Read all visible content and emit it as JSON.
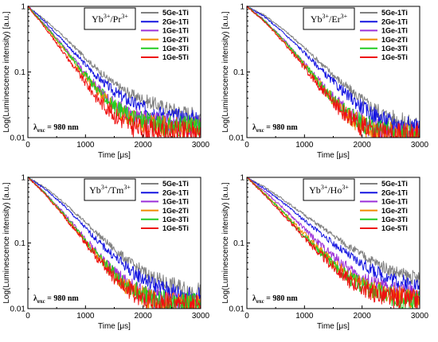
{
  "chart_data": [
    {
      "type": "line",
      "panel": "top-left",
      "title": "",
      "inset_label": {
        "ion": "Yb",
        "ion_sup": "3+",
        "co": "Pr",
        "co_sup": "3+"
      },
      "xlabel": "Time [μs]",
      "ylabel": "Log(Luminescence intensity) [a.u.]",
      "xlim": [
        0,
        3000
      ],
      "ylim": [
        0.01,
        1
      ],
      "yscale": "log",
      "x_ticks": [
        "0",
        "1000",
        "2000",
        "3000"
      ],
      "y_ticks": [
        "0.01",
        "0.1",
        "1"
      ],
      "excitation": {
        "symbol": "λ",
        "sub": "exc",
        "value": " = 980 nm"
      },
      "legend_position": "top-right",
      "grid": false,
      "series": [
        {
          "name": "5Ge-1Ti",
          "color": "#808080",
          "x": [
            0,
            300,
            600,
            900,
            1200,
            1500,
            1800,
            2100,
            2400,
            2700,
            3000
          ],
          "values": [
            1,
            0.62,
            0.36,
            0.2,
            0.11,
            0.065,
            0.045,
            0.035,
            0.028,
            0.024,
            0.021
          ]
        },
        {
          "name": "2Ge-1Ti",
          "color": "#1515e0",
          "x": [
            0,
            300,
            600,
            900,
            1200,
            1500,
            1800,
            2100,
            2400,
            2700,
            3000
          ],
          "values": [
            1,
            0.58,
            0.31,
            0.16,
            0.085,
            0.05,
            0.034,
            0.026,
            0.022,
            0.02,
            0.019
          ]
        },
        {
          "name": "1Ge-1Ti",
          "color": "#9b30d9",
          "x": [
            0,
            300,
            600,
            900,
            1200,
            1500,
            1800,
            2100,
            2400,
            2700,
            3000
          ],
          "values": [
            1,
            0.52,
            0.26,
            0.12,
            0.058,
            0.032,
            0.022,
            0.018,
            0.016,
            0.015,
            0.015
          ]
        },
        {
          "name": "1Ge-2Ti",
          "color": "#f08a00",
          "x": [
            0,
            300,
            600,
            900,
            1200,
            1500,
            1800,
            2100,
            2400,
            2700,
            3000
          ],
          "values": [
            1,
            0.5,
            0.24,
            0.11,
            0.052,
            0.028,
            0.019,
            0.016,
            0.015,
            0.014,
            0.014
          ]
        },
        {
          "name": "1Ge-3Ti",
          "color": "#22cc22",
          "x": [
            0,
            300,
            600,
            900,
            1200,
            1500,
            1800,
            2100,
            2400,
            2700,
            3000
          ],
          "values": [
            1,
            0.51,
            0.25,
            0.115,
            0.055,
            0.03,
            0.021,
            0.017,
            0.015,
            0.015,
            0.015
          ]
        },
        {
          "name": "1Ge-5Ti",
          "color": "#ee1111",
          "x": [
            0,
            300,
            600,
            900,
            1200,
            1500,
            1800,
            2100,
            2400,
            2700,
            3000
          ],
          "values": [
            1,
            0.47,
            0.21,
            0.09,
            0.04,
            0.022,
            0.015,
            0.013,
            0.012,
            0.012,
            0.012
          ]
        }
      ]
    },
    {
      "type": "line",
      "panel": "top-right",
      "title": "",
      "inset_label": {
        "ion": "Yb",
        "ion_sup": "3+",
        "co": "Er",
        "co_sup": "3+"
      },
      "xlabel": "Time [μs]",
      "ylabel": "Log(Luminescence intensity) [a.u.]",
      "xlim": [
        0,
        3000
      ],
      "ylim": [
        0.01,
        1
      ],
      "yscale": "log",
      "x_ticks": [
        "0",
        "1000",
        "2000",
        "3000"
      ],
      "y_ticks": [
        "0.01",
        "0.1",
        "1"
      ],
      "excitation": {
        "symbol": "λ",
        "sub": "exc",
        "value": " = 980 nm"
      },
      "legend_position": "top-right",
      "grid": false,
      "series": [
        {
          "name": "5Ge-1Ti",
          "color": "#808080",
          "x": [
            0,
            300,
            600,
            900,
            1200,
            1500,
            1800,
            2100,
            2400,
            2700,
            3000
          ],
          "values": [
            1,
            0.74,
            0.47,
            0.28,
            0.16,
            0.09,
            0.052,
            0.032,
            0.022,
            0.017,
            0.015
          ]
        },
        {
          "name": "2Ge-1Ti",
          "color": "#1515e0",
          "x": [
            0,
            300,
            600,
            900,
            1200,
            1500,
            1800,
            2100,
            2400,
            2700,
            3000
          ],
          "values": [
            1,
            0.7,
            0.42,
            0.24,
            0.13,
            0.07,
            0.04,
            0.025,
            0.018,
            0.015,
            0.014
          ]
        },
        {
          "name": "1Ge-1Ti",
          "color": "#9b30d9",
          "x": [
            0,
            300,
            600,
            900,
            1200,
            1500,
            1800,
            2100,
            2400,
            2700,
            3000
          ],
          "values": [
            1,
            0.62,
            0.34,
            0.17,
            0.082,
            0.04,
            0.022,
            0.015,
            0.012,
            0.011,
            0.011
          ]
        },
        {
          "name": "1Ge-2Ti",
          "color": "#f08a00",
          "x": [
            0,
            300,
            600,
            900,
            1200,
            1500,
            1800,
            2100,
            2400,
            2700,
            3000
          ],
          "values": [
            1,
            0.6,
            0.32,
            0.16,
            0.076,
            0.037,
            0.02,
            0.014,
            0.012,
            0.011,
            0.011
          ]
        },
        {
          "name": "1Ge-3Ti",
          "color": "#22cc22",
          "x": [
            0,
            300,
            600,
            900,
            1200,
            1500,
            1800,
            2100,
            2400,
            2700,
            3000
          ],
          "values": [
            1,
            0.61,
            0.33,
            0.165,
            0.079,
            0.038,
            0.021,
            0.015,
            0.012,
            0.011,
            0.011
          ]
        },
        {
          "name": "1Ge-5Ti",
          "color": "#ee1111",
          "x": [
            0,
            300,
            600,
            900,
            1200,
            1500,
            1800,
            2100,
            2400,
            2700,
            3000
          ],
          "values": [
            1,
            0.59,
            0.31,
            0.15,
            0.07,
            0.034,
            0.019,
            0.013,
            0.011,
            0.011,
            0.011
          ]
        }
      ]
    },
    {
      "type": "line",
      "panel": "bottom-left",
      "title": "",
      "inset_label": {
        "ion": "Yb",
        "ion_sup": "3+",
        "co": "Tm",
        "co_sup": "3+"
      },
      "xlabel": "Time [μs]",
      "ylabel": "Log(Luminescence intensity) [a.u.]",
      "xlim": [
        0,
        3000
      ],
      "ylim": [
        0.01,
        1
      ],
      "yscale": "log",
      "x_ticks": [
        "0",
        "1000",
        "2000",
        "3000"
      ],
      "y_ticks": [
        "0.01",
        "0.1",
        "1"
      ],
      "excitation": {
        "symbol": "λ",
        "sub": "exc",
        "value": " = 980 nm"
      },
      "legend_position": "top-right",
      "grid": false,
      "series": [
        {
          "name": "5Ge-1Ti",
          "color": "#808080",
          "x": [
            0,
            300,
            600,
            900,
            1200,
            1500,
            1800,
            2100,
            2400,
            2700,
            3000
          ],
          "values": [
            1,
            0.7,
            0.43,
            0.25,
            0.14,
            0.08,
            0.048,
            0.032,
            0.024,
            0.02,
            0.018
          ]
        },
        {
          "name": "2Ge-1Ti",
          "color": "#1515e0",
          "x": [
            0,
            300,
            600,
            900,
            1200,
            1500,
            1800,
            2100,
            2400,
            2700,
            3000
          ],
          "values": [
            1,
            0.66,
            0.39,
            0.21,
            0.11,
            0.062,
            0.037,
            0.025,
            0.019,
            0.016,
            0.015
          ]
        },
        {
          "name": "1Ge-1Ti",
          "color": "#9b30d9",
          "x": [
            0,
            300,
            600,
            900,
            1200,
            1500,
            1800,
            2100,
            2400,
            2700,
            3000
          ],
          "values": [
            1,
            0.58,
            0.3,
            0.15,
            0.07,
            0.036,
            0.021,
            0.015,
            0.013,
            0.012,
            0.012
          ]
        },
        {
          "name": "1Ge-2Ti",
          "color": "#f08a00",
          "x": [
            0,
            300,
            600,
            900,
            1200,
            1500,
            1800,
            2100,
            2400,
            2700,
            3000
          ],
          "values": [
            1,
            0.56,
            0.28,
            0.135,
            0.063,
            0.032,
            0.019,
            0.014,
            0.012,
            0.011,
            0.011
          ]
        },
        {
          "name": "1Ge-3Ti",
          "color": "#22cc22",
          "x": [
            0,
            300,
            600,
            900,
            1200,
            1500,
            1800,
            2100,
            2400,
            2700,
            3000
          ],
          "values": [
            1,
            0.57,
            0.29,
            0.14,
            0.066,
            0.034,
            0.02,
            0.015,
            0.013,
            0.012,
            0.012
          ]
        },
        {
          "name": "1Ge-5Ti",
          "color": "#ee1111",
          "x": [
            0,
            300,
            600,
            900,
            1200,
            1500,
            1800,
            2100,
            2400,
            2700,
            3000
          ],
          "values": [
            1,
            0.55,
            0.27,
            0.13,
            0.06,
            0.03,
            0.018,
            0.013,
            0.012,
            0.011,
            0.011
          ]
        }
      ]
    },
    {
      "type": "line",
      "panel": "bottom-right",
      "title": "",
      "inset_label": {
        "ion": "Yb",
        "ion_sup": "3+",
        "co": "Ho",
        "co_sup": "3+"
      },
      "xlabel": "Time [μs]",
      "ylabel": "Log(Luminescence intensity) [a.u.]",
      "xlim": [
        0,
        3000
      ],
      "ylim": [
        0.01,
        1
      ],
      "yscale": "log",
      "x_ticks": [
        "0",
        "1000",
        "2000",
        "3000"
      ],
      "y_ticks": [
        "0.01",
        "0.1",
        "1"
      ],
      "excitation": {
        "symbol": "λ",
        "sub": "exc",
        "value": " = 980 nm"
      },
      "legend_position": "top-right",
      "grid": false,
      "series": [
        {
          "name": "5Ge-1Ti",
          "color": "#808080",
          "x": [
            0,
            300,
            600,
            900,
            1200,
            1500,
            1800,
            2100,
            2400,
            2700,
            3000
          ],
          "values": [
            1,
            0.72,
            0.48,
            0.31,
            0.2,
            0.13,
            0.085,
            0.058,
            0.042,
            0.033,
            0.028
          ]
        },
        {
          "name": "2Ge-1Ti",
          "color": "#1515e0",
          "x": [
            0,
            300,
            600,
            900,
            1200,
            1500,
            1800,
            2100,
            2400,
            2700,
            3000
          ],
          "values": [
            1,
            0.68,
            0.43,
            0.26,
            0.16,
            0.098,
            0.062,
            0.042,
            0.031,
            0.025,
            0.022
          ]
        },
        {
          "name": "1Ge-1Ti",
          "color": "#9b30d9",
          "x": [
            0,
            300,
            600,
            900,
            1200,
            1500,
            1800,
            2100,
            2400,
            2700,
            3000
          ],
          "values": [
            1,
            0.62,
            0.36,
            0.2,
            0.11,
            0.063,
            0.038,
            0.026,
            0.02,
            0.017,
            0.016
          ]
        },
        {
          "name": "1Ge-2Ti",
          "color": "#f08a00",
          "x": [
            0,
            300,
            600,
            900,
            1200,
            1500,
            1800,
            2100,
            2400,
            2700,
            3000
          ],
          "values": [
            1,
            0.58,
            0.32,
            0.17,
            0.09,
            0.05,
            0.03,
            0.021,
            0.017,
            0.015,
            0.014
          ]
        },
        {
          "name": "1Ge-3Ti",
          "color": "#22cc22",
          "x": [
            0,
            300,
            600,
            900,
            1200,
            1500,
            1800,
            2100,
            2400,
            2700,
            3000
          ],
          "values": [
            1,
            0.57,
            0.31,
            0.16,
            0.085,
            0.047,
            0.028,
            0.02,
            0.016,
            0.014,
            0.014
          ]
        },
        {
          "name": "1Ge-5Ti",
          "color": "#ee1111",
          "x": [
            0,
            300,
            600,
            900,
            1200,
            1500,
            1800,
            2100,
            2400,
            2700,
            3000
          ],
          "values": [
            1,
            0.55,
            0.29,
            0.15,
            0.078,
            0.043,
            0.026,
            0.019,
            0.015,
            0.014,
            0.013
          ]
        }
      ]
    }
  ]
}
